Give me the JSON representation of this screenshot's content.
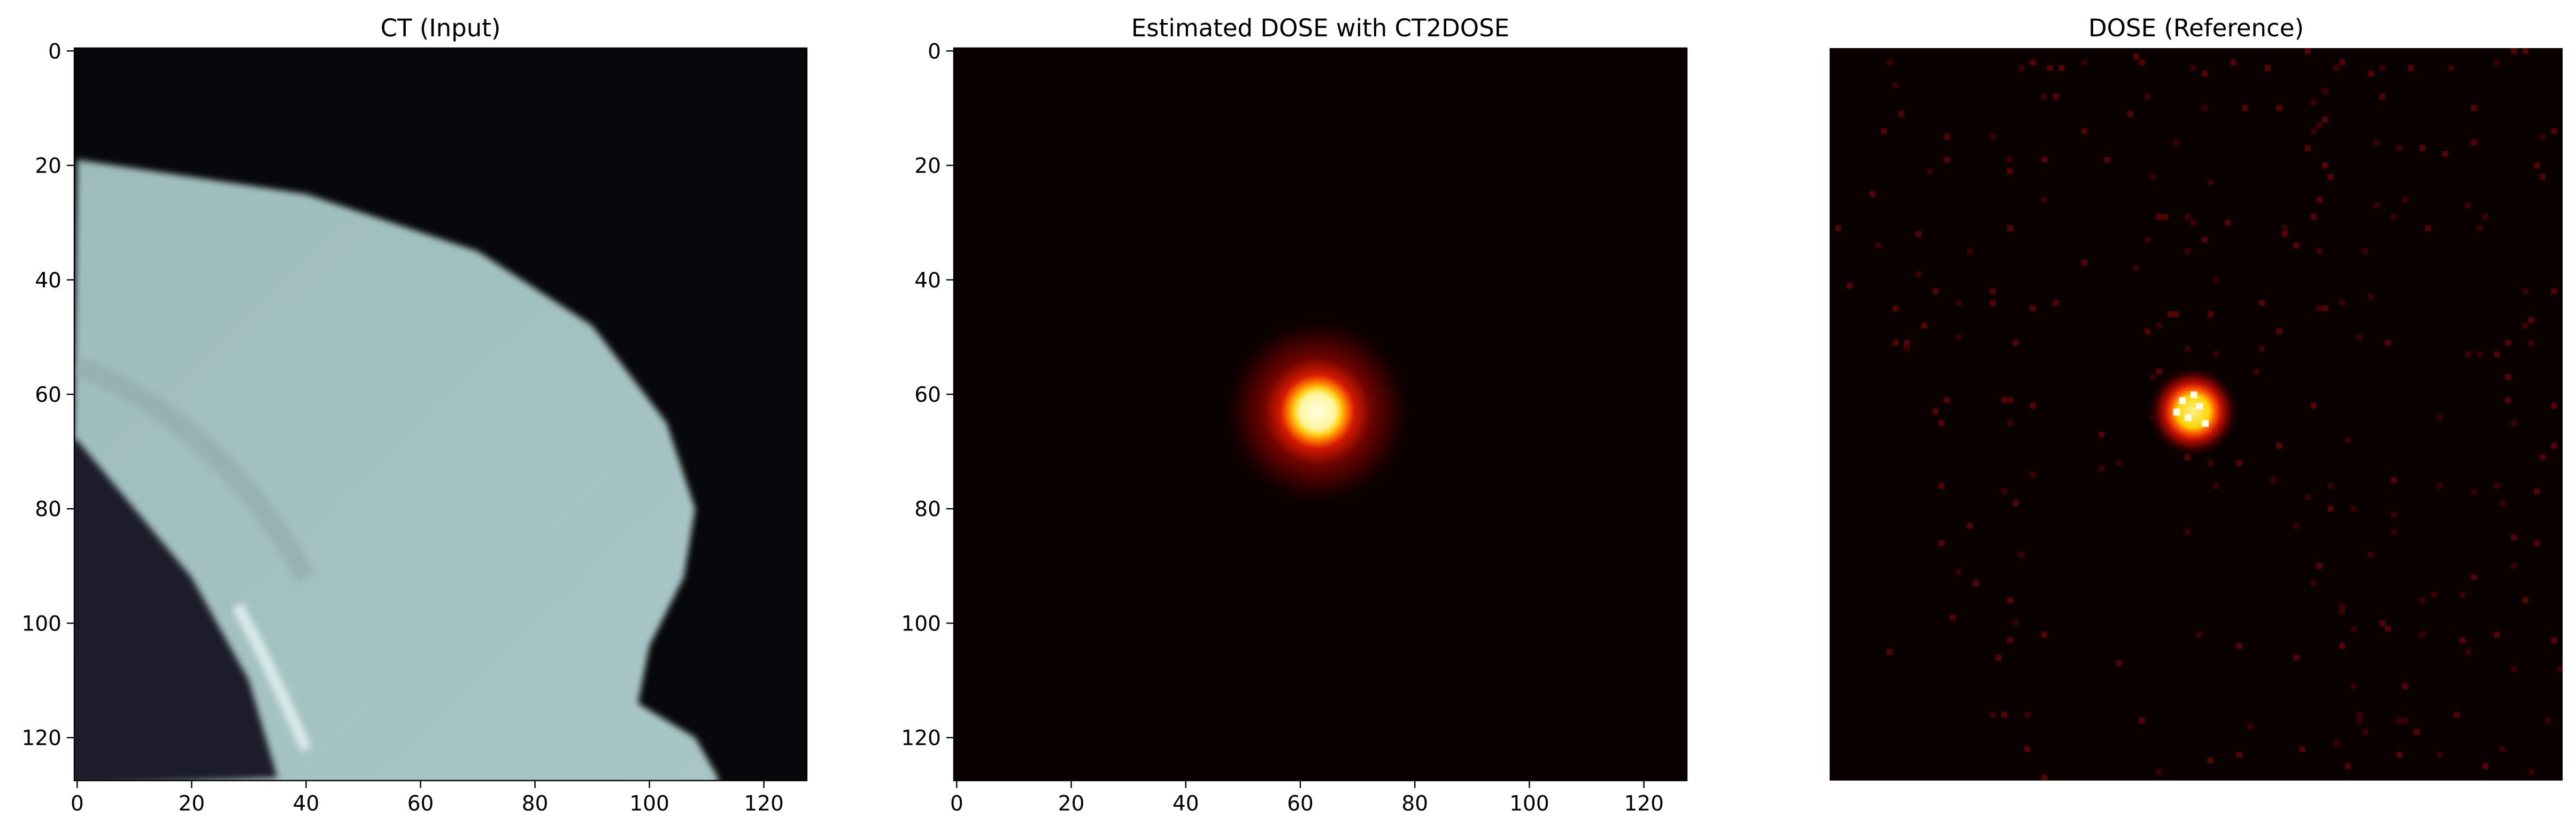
{
  "chart_data": [
    {
      "type": "heatmap",
      "title": "CT (Input)",
      "colormap": "bone",
      "xlim": [
        0,
        127
      ],
      "ylim": [
        127,
        0
      ],
      "xticks": [
        0,
        20,
        40,
        60,
        80,
        100,
        120
      ],
      "yticks": [
        0,
        20,
        40,
        60,
        80,
        100,
        120
      ],
      "axes_visible": true,
      "content": {
        "background": "air (near black)",
        "body_outer_edge": [
          [
            0,
            19
          ],
          [
            40,
            25
          ],
          [
            70,
            35
          ],
          [
            90,
            48
          ],
          [
            103,
            65
          ],
          [
            108,
            80
          ],
          [
            106,
            92
          ],
          [
            100,
            104
          ],
          [
            98,
            114
          ],
          [
            108,
            120
          ],
          [
            112,
            127
          ]
        ],
        "lung_edge": [
          [
            0,
            68
          ],
          [
            10,
            80
          ],
          [
            20,
            92
          ],
          [
            30,
            110
          ],
          [
            35,
            127
          ]
        ]
      }
    },
    {
      "type": "heatmap",
      "title": "Estimated DOSE with CT2DOSE",
      "colormap": "hot",
      "xlim": [
        0,
        127
      ],
      "ylim": [
        127,
        0
      ],
      "xticks": [
        0,
        20,
        40,
        60,
        80,
        100,
        120
      ],
      "yticks": [
        0,
        20,
        40,
        60,
        80,
        100,
        120
      ],
      "axes_visible": true,
      "content": {
        "hotspot_center": [
          63,
          63
        ],
        "hotspot_core_radius": 4,
        "halo_radius": 17
      }
    },
    {
      "type": "heatmap",
      "title": "DOSE (Reference)",
      "colormap": "hot",
      "xlim": [
        0,
        127
      ],
      "ylim": [
        127,
        0
      ],
      "axes_visible": false,
      "content": {
        "hotspot_center": [
          63,
          63
        ],
        "hotspot_core_radius": 4,
        "halo_radius": 8,
        "scatter_noise": "sparse red speckles, denser toward upper right"
      }
    }
  ]
}
